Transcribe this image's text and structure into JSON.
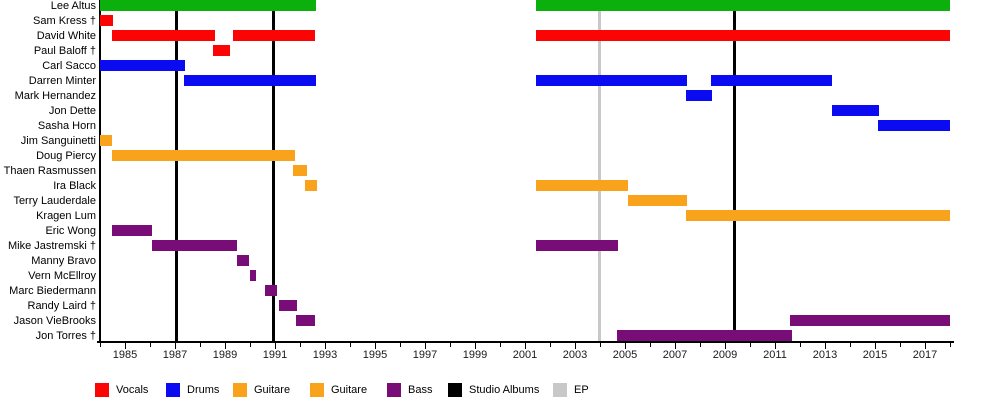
{
  "chart_data": {
    "type": "timeline",
    "title": "",
    "x_axis": {
      "min_year": 1984,
      "max_year": 2018.12,
      "tick_interval_years": 1,
      "labeled_ticks": [
        "1985",
        "1987",
        "1989",
        "1991",
        "1993",
        "1995",
        "1997",
        "1999",
        "2001",
        "2003",
        "2005",
        "2007",
        "2009",
        "2011",
        "2013",
        "2015",
        "2017"
      ],
      "labeled_tick_years": [
        1985,
        1987,
        1989,
        1991,
        1993,
        1995,
        1997,
        1999,
        2001,
        2003,
        2005,
        2007,
        2009,
        2011,
        2013,
        2015,
        2017
      ]
    },
    "colors": {
      "green": "#0cb00c",
      "vocals": "#fa0404",
      "drums": "#0b0bf2",
      "guitar": "#f9a21c",
      "bass": "#780d78",
      "studio_albums": "#000000",
      "ep": "#c8c8c8",
      "axis": "#000000",
      "text": "#000000"
    },
    "members": [
      {
        "name": "Lee Altus",
        "color": "green",
        "periods": [
          [
            1984.0,
            1992.64
          ],
          [
            2001.44,
            2018.0
          ]
        ]
      },
      {
        "name": "Sam Kress †",
        "color": "vocals",
        "periods": [
          [
            1984.0,
            1984.52
          ]
        ]
      },
      {
        "name": "David White",
        "color": "vocals",
        "periods": [
          [
            1984.48,
            1988.6
          ],
          [
            1989.32,
            1992.6
          ],
          [
            2001.44,
            2018.0
          ]
        ]
      },
      {
        "name": "Paul Baloff †",
        "color": "vocals",
        "periods": [
          [
            1988.52,
            1989.2
          ]
        ]
      },
      {
        "name": "Carl Sacco",
        "color": "drums",
        "periods": [
          [
            1984.0,
            1987.4
          ]
        ]
      },
      {
        "name": "Darren Minter",
        "color": "drums",
        "periods": [
          [
            1987.37,
            1992.64
          ],
          [
            2001.44,
            2007.48
          ],
          [
            2008.44,
            2013.28
          ]
        ]
      },
      {
        "name": "Mark Hernandez",
        "color": "drums",
        "periods": [
          [
            2007.43,
            2008.47
          ]
        ]
      },
      {
        "name": "Jon Dette",
        "color": "drums",
        "periods": [
          [
            2013.28,
            2015.16
          ]
        ]
      },
      {
        "name": "Sasha Horn",
        "color": "drums",
        "periods": [
          [
            2015.12,
            2018.0
          ]
        ]
      },
      {
        "name": "Jim Sanguinetti",
        "color": "guitar",
        "periods": [
          [
            1984.0,
            1984.48
          ]
        ]
      },
      {
        "name": "Doug Piercy",
        "color": "guitar",
        "periods": [
          [
            1984.48,
            1991.8
          ]
        ]
      },
      {
        "name": "Thaen Rasmussen",
        "color": "guitar",
        "periods": [
          [
            1991.71,
            1992.27
          ]
        ]
      },
      {
        "name": "Ira Black",
        "color": "guitar",
        "periods": [
          [
            1992.2,
            1992.68
          ],
          [
            2001.44,
            2005.12
          ]
        ]
      },
      {
        "name": "Terry Lauderdale",
        "color": "guitar",
        "periods": [
          [
            2005.11,
            2007.47
          ]
        ]
      },
      {
        "name": "Kragen Lum",
        "color": "guitar",
        "periods": [
          [
            2007.43,
            2018.0
          ]
        ]
      },
      {
        "name": "Eric Wong",
        "color": "bass",
        "periods": [
          [
            1984.47,
            1986.07
          ]
        ]
      },
      {
        "name": "Mike Jastremski †",
        "color": "bass",
        "periods": [
          [
            1986.07,
            1989.47
          ],
          [
            2001.44,
            2004.71
          ]
        ]
      },
      {
        "name": "Manny Bravo",
        "color": "bass",
        "periods": [
          [
            1989.47,
            1989.97
          ]
        ]
      },
      {
        "name": "Vern McEllroy",
        "color": "bass",
        "periods": [
          [
            1990.0,
            1990.24
          ]
        ]
      },
      {
        "name": "Marc Biedermann",
        "color": "bass",
        "periods": [
          [
            1990.6,
            1991.09
          ]
        ]
      },
      {
        "name": "Randy Laird †",
        "color": "bass",
        "periods": [
          [
            1991.17,
            1991.87
          ]
        ]
      },
      {
        "name": "Jason VieBrooks",
        "color": "bass",
        "periods": [
          [
            1991.84,
            1992.6
          ],
          [
            2011.6,
            2018.0
          ]
        ]
      },
      {
        "name": "Jon Torres †",
        "color": "bass",
        "periods": [
          [
            2004.67,
            2011.67
          ]
        ]
      }
    ],
    "event_lines": {
      "studio_albums": [
        1987.06,
        1990.92,
        2009.36
      ],
      "ep": [
        2003.96
      ]
    },
    "legend": [
      {
        "label": "Vocals",
        "color": "vocals"
      },
      {
        "label": "Drums",
        "color": "drums"
      },
      {
        "label": "Guitare",
        "color": "guitar"
      },
      {
        "label": "Guitare",
        "color": "guitar"
      },
      {
        "label": "Bass",
        "color": "bass"
      },
      {
        "label": "Studio Albums",
        "color": "studio_albums"
      },
      {
        "label": "EP",
        "color": "ep"
      }
    ],
    "legend_position": "bottom"
  }
}
